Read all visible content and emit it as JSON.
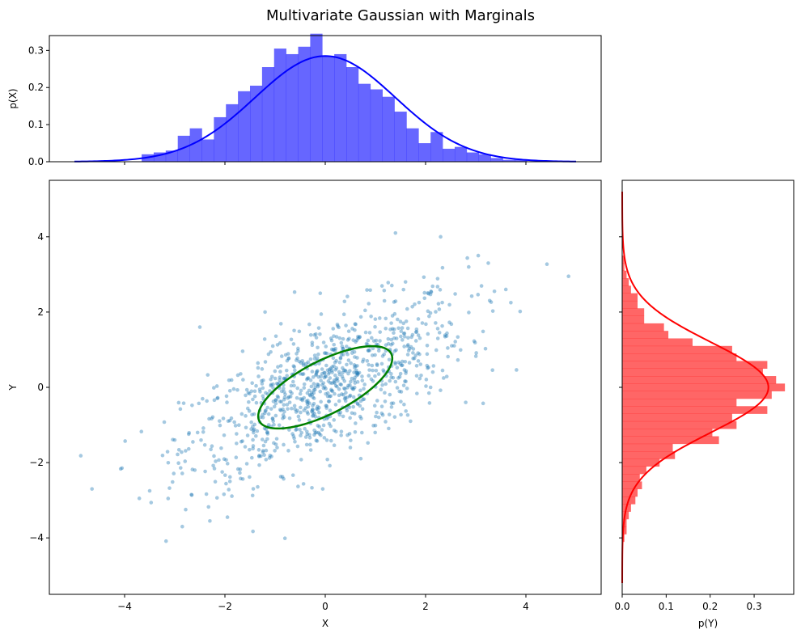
{
  "figure": {
    "title": "Multivariate Gaussian with Marginals"
  },
  "chart_data": [
    {
      "panel": "joint",
      "type": "scatter",
      "xlabel": "X",
      "ylabel": "Y",
      "xlim": [
        -5.5,
        5.5
      ],
      "ylim": [
        -5.5,
        5.5
      ],
      "xticks": [
        -4,
        -2,
        0,
        2,
        4
      ],
      "yticks": [
        -4,
        -2,
        0,
        2,
        4
      ],
      "xtick_labels": [
        "−4",
        "−2",
        "0",
        "2",
        "4"
      ],
      "ytick_labels": [
        "−4",
        "−2",
        "0",
        "2",
        "4"
      ],
      "grid": false,
      "points_color": "#1f77b4",
      "points_alpha": 0.4,
      "distribution": {
        "mean": [
          0,
          0
        ],
        "cov": [
          [
            1.96,
            1.14
          ],
          [
            1.14,
            1.44
          ]
        ],
        "n": 1000
      },
      "sample_points": [
        [
          -4.65,
          -2.7
        ],
        [
          -3.5,
          -2.75
        ],
        [
          -2.85,
          -3.7
        ],
        [
          -2.3,
          -3.55
        ],
        [
          -1.95,
          -3.45
        ],
        [
          -3.0,
          -1.4
        ],
        [
          -2.5,
          1.6
        ],
        [
          -1.2,
          2.0
        ],
        [
          -0.1,
          2.5
        ],
        [
          1.4,
          4.1
        ],
        [
          2.3,
          4.0
        ],
        [
          3.05,
          3.5
        ],
        [
          3.25,
          3.3
        ],
        [
          4.85,
          2.95
        ],
        [
          3.6,
          2.6
        ],
        [
          3.7,
          2.25
        ],
        [
          2.8,
          -0.4
        ],
        [
          2.1,
          0.0
        ],
        [
          1.7,
          -0.9
        ],
        [
          0.5,
          -1.6
        ],
        [
          -0.05,
          -2.7
        ],
        [
          -1.9,
          -2.5
        ],
        [
          -2.6,
          -2.2
        ],
        [
          1.6,
          2.8
        ],
        [
          0.0,
          0.3
        ]
      ],
      "ellipse": {
        "center": [
          0,
          0
        ],
        "color": "#008000",
        "description": "1-sigma contour",
        "params": {
          "width": 3.2,
          "height": 1.3,
          "angle_deg": 37
        }
      }
    },
    {
      "panel": "marginal-x",
      "type": "bar",
      "ylabel": "p(X)",
      "ylim": [
        0,
        0.34
      ],
      "yticks": [
        0.0,
        0.1,
        0.2,
        0.3
      ],
      "ytick_labels": [
        "0.0",
        "0.1",
        "0.2",
        "0.3"
      ],
      "bar_color": "#0000ff",
      "bar_alpha": 0.6,
      "bins": {
        "left": [
          -3.66,
          -3.42,
          -3.18,
          -2.94,
          -2.7,
          -2.46,
          -2.22,
          -1.98,
          -1.74,
          -1.5,
          -1.26,
          -1.02,
          -0.78,
          -0.54,
          -0.3,
          -0.06,
          0.18,
          0.42,
          0.66,
          0.9,
          1.14,
          1.38,
          1.62,
          1.86,
          2.1,
          2.34,
          2.58,
          2.82,
          3.06,
          3.3,
          3.54,
          3.78
        ],
        "values": [
          0.02,
          0.025,
          0.03,
          0.07,
          0.09,
          0.06,
          0.12,
          0.155,
          0.19,
          0.205,
          0.255,
          0.305,
          0.29,
          0.31,
          0.345,
          0.285,
          0.29,
          0.255,
          0.21,
          0.195,
          0.175,
          0.135,
          0.09,
          0.05,
          0.08,
          0.035,
          0.04,
          0.025,
          0.02,
          0.01,
          0.005,
          0.005
        ],
        "width": 0.24
      },
      "curve": {
        "kind": "normal-pdf",
        "mean": 0,
        "sigma": 1.4,
        "x_range": [
          -5,
          5
        ],
        "color": "#0000ff"
      }
    },
    {
      "panel": "marginal-y",
      "type": "bar",
      "orientation": "horizontal",
      "xlabel": "p(Y)",
      "xlim": [
        0,
        0.39
      ],
      "xticks": [
        0.0,
        0.1,
        0.2,
        0.3
      ],
      "xtick_labels": [
        "0.0",
        "0.1",
        "0.2",
        "0.3"
      ],
      "bar_color": "#ff0000",
      "bar_alpha": 0.6,
      "bins": {
        "bottom": [
          -4.1,
          -3.9,
          -3.7,
          -3.5,
          -3.3,
          -3.1,
          -2.9,
          -2.7,
          -2.5,
          -2.3,
          -2.1,
          -1.9,
          -1.7,
          -1.5,
          -1.3,
          -1.1,
          -0.9,
          -0.7,
          -0.5,
          -0.3,
          -0.1,
          0.1,
          0.3,
          0.5,
          0.7,
          0.9,
          1.1,
          1.3,
          1.5,
          1.7,
          1.9,
          2.1,
          2.3,
          2.5,
          2.7,
          2.9,
          3.1,
          3.3
        ],
        "values": [
          0.005,
          0.01,
          0.01,
          0.015,
          0.02,
          0.03,
          0.035,
          0.045,
          0.04,
          0.055,
          0.085,
          0.12,
          0.115,
          0.22,
          0.205,
          0.26,
          0.25,
          0.33,
          0.26,
          0.34,
          0.37,
          0.35,
          0.32,
          0.33,
          0.26,
          0.25,
          0.16,
          0.105,
          0.095,
          0.05,
          0.05,
          0.035,
          0.035,
          0.02,
          0.015,
          0.01,
          0.005,
          0.005
        ],
        "height": 0.2
      },
      "curve": {
        "kind": "normal-pdf",
        "mean": 0,
        "sigma": 1.2,
        "y_range": [
          -5.2,
          5.2
        ],
        "color": "#ff0000"
      }
    }
  ]
}
